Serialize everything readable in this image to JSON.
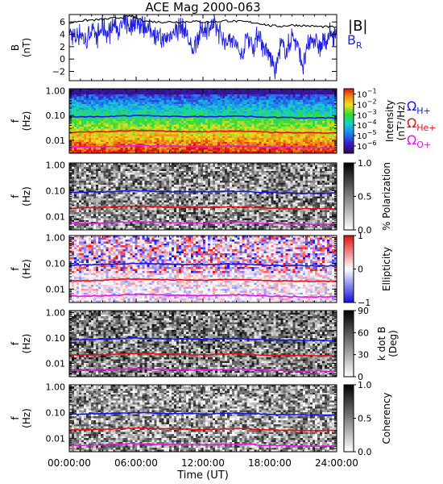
{
  "title": "ACE Mag 2000-063",
  "time_axis": {
    "ticks": [
      "00:00:00",
      "06:00:00",
      "12:00:00",
      "18:00:00",
      "24:00:00"
    ],
    "tick_hours": [
      0,
      6,
      12,
      18,
      24
    ],
    "range_hours": [
      0,
      24
    ],
    "xlabel": "Time (UT)"
  },
  "colors": {
    "black_trace": "#000000",
    "blue_trace": "#1f1fe0",
    "h_line": "#1414e6",
    "he_line": "#e60f0f",
    "o_line": "#e619e6"
  },
  "legend": {
    "b_total": "|B|",
    "b_r_main": "B",
    "b_r_sub": "R",
    "omega": "Ω",
    "h_sub": "H+",
    "he_sub": "He+",
    "o_sub": "O+"
  },
  "chart_data": [
    {
      "type": "line",
      "panel": "B",
      "ylabel_main": "B",
      "ylabel_unit": "(nT)",
      "ylim": [
        -3.5,
        7.2
      ],
      "y_ticks": [
        "6",
        "4",
        "2",
        "0",
        "−2"
      ],
      "y_tick_values": [
        6,
        4,
        2,
        0,
        -2
      ],
      "series": [
        {
          "name": "|B|",
          "x": [
            0,
            1,
            2,
            3,
            4,
            5,
            5.5,
            6,
            7,
            8,
            9,
            10,
            11,
            12,
            13,
            14,
            15,
            16,
            17,
            18,
            19,
            20,
            21,
            22,
            23,
            24
          ],
          "y": [
            5.8,
            6.2,
            6.3,
            6.4,
            6.6,
            6.8,
            7.0,
            6.6,
            6.1,
            6.0,
            6.0,
            6.0,
            6.1,
            6.0,
            6.0,
            6.2,
            6.1,
            6.0,
            5.8,
            5.4,
            5.3,
            5.5,
            5.4,
            5.3,
            5.2,
            5.2
          ]
        },
        {
          "name": "B_R",
          "x": [
            0,
            0.5,
            1,
            1.5,
            2,
            2.5,
            3,
            3.5,
            4,
            4.5,
            5,
            5.5,
            6,
            6.5,
            7,
            7.5,
            8,
            8.5,
            9,
            9.5,
            10,
            10.5,
            11,
            11.5,
            12,
            12.5,
            13,
            13.5,
            14,
            14.5,
            15,
            15.5,
            16,
            16.5,
            17,
            17.5,
            18,
            18.5,
            19,
            19.5,
            20,
            20.5,
            21,
            21.5,
            22,
            22.5,
            23,
            23.5,
            24
          ],
          "y": [
            4.6,
            3.2,
            4.4,
            2.6,
            4.8,
            3.5,
            5.2,
            4.0,
            5.6,
            4.7,
            5.8,
            5.2,
            6.3,
            5.6,
            5.0,
            4.5,
            3.6,
            2.8,
            3.8,
            4.6,
            5.3,
            4.2,
            1.0,
            3.5,
            4.9,
            5.0,
            5.4,
            4.3,
            2.5,
            3.8,
            2.0,
            0.3,
            4.0,
            2.0,
            4.3,
            1.5,
            0.5,
            -2.0,
            2.3,
            1.2,
            3.8,
            2.2,
            -1.2,
            2.6,
            3.4,
            1.8,
            2.9,
            4.0,
            3.8
          ]
        }
      ]
    },
    {
      "type": "heatmap",
      "panel": "intensity",
      "ylabel_main": "f",
      "ylabel_unit": "(Hz)",
      "y_scale": "log",
      "ylim": [
        0.003,
        1.2
      ],
      "y_ticks": [
        "1.00",
        "0.10",
        "0.01"
      ],
      "y_tick_values": [
        1,
        0.1,
        0.01
      ],
      "colorbar": {
        "label": "Intensity",
        "unit": "(nT²/Hz)",
        "scale": "log",
        "ticks": [
          {
            "base": "10",
            "exp": "−1",
            "value": 0.1
          },
          {
            "base": "10",
            "exp": "−2",
            "value": 0.01
          },
          {
            "base": "10",
            "exp": "−3",
            "value": 0.001
          },
          {
            "base": "10",
            "exp": "−4",
            "value": 0.0001
          },
          {
            "base": "10",
            "exp": "−5",
            "value": 1e-05
          },
          {
            "base": "10",
            "exp": "−6",
            "value": 1e-06
          }
        ]
      },
      "overlays": [
        {
          "name": "Ω H+",
          "x": [
            0,
            3,
            6,
            9,
            12,
            15,
            18,
            21,
            24
          ],
          "y": [
            0.085,
            0.09,
            0.1,
            0.092,
            0.09,
            0.095,
            0.085,
            0.08,
            0.08
          ]
        },
        {
          "name": "Ω He+",
          "x": [
            0,
            3,
            6,
            9,
            12,
            15,
            18,
            21,
            24
          ],
          "y": [
            0.021,
            0.022,
            0.025,
            0.023,
            0.022,
            0.024,
            0.021,
            0.02,
            0.02
          ]
        },
        {
          "name": "Ω O+",
          "x": [
            0,
            3,
            6,
            9,
            12,
            15,
            18,
            21,
            24
          ],
          "y": [
            0.0053,
            0.0055,
            0.0062,
            0.0058,
            0.0055,
            0.006,
            0.0053,
            0.005,
            0.005
          ]
        }
      ]
    },
    {
      "type": "heatmap",
      "panel": "polarization",
      "ylabel_main": "f",
      "ylabel_unit": "(Hz)",
      "y_scale": "log",
      "ylim": [
        0.003,
        1.2
      ],
      "y_ticks": [
        "1.00",
        "0.10",
        "0.01"
      ],
      "y_tick_values": [
        1,
        0.1,
        0.01
      ],
      "colorbar": {
        "label": "% Polarization",
        "ticks": [
          "1.0",
          "0.5",
          "0.0"
        ],
        "tick_values": [
          1,
          0.5,
          0
        ],
        "range": [
          0,
          1
        ]
      },
      "overlays": "same as intensity panel"
    },
    {
      "type": "heatmap",
      "panel": "ellipticity",
      "ylabel_main": "f",
      "ylabel_unit": "(Hz)",
      "y_scale": "log",
      "ylim": [
        0.003,
        1.2
      ],
      "y_ticks": [
        "1.00",
        "0.10",
        "0.01"
      ],
      "y_tick_values": [
        1,
        0.1,
        0.01
      ],
      "colorbar": {
        "label": "Ellipticity",
        "ticks": [
          "1",
          "0",
          "−1"
        ],
        "tick_values": [
          1,
          0,
          -1
        ],
        "range": [
          -1,
          1
        ]
      },
      "overlays": "same as intensity panel"
    },
    {
      "type": "heatmap",
      "panel": "k_dot_b",
      "ylabel_main": "f",
      "ylabel_unit": "(Hz)",
      "y_scale": "log",
      "ylim": [
        0.003,
        1.2
      ],
      "y_ticks": [
        "1.00",
        "0.10",
        "0.01"
      ],
      "y_tick_values": [
        1,
        0.1,
        0.01
      ],
      "colorbar": {
        "label": "k dot B",
        "unit": "(Deg)",
        "ticks": [
          "90",
          "60",
          "30",
          "0"
        ],
        "tick_values": [
          90,
          60,
          30,
          0
        ],
        "range": [
          0,
          90
        ]
      },
      "overlays": "same as intensity panel"
    },
    {
      "type": "heatmap",
      "panel": "coherency",
      "ylabel_main": "f",
      "ylabel_unit": "(Hz)",
      "y_scale": "log",
      "ylim": [
        0.003,
        1.2
      ],
      "y_ticks": [
        "1.00",
        "0.10",
        "0.01"
      ],
      "y_tick_values": [
        1,
        0.1,
        0.01
      ],
      "colorbar": {
        "label": "Coherency",
        "ticks": [
          "1.0",
          "0.5",
          "0.0"
        ],
        "tick_values": [
          1,
          0.5,
          0
        ],
        "range": [
          0,
          1
        ]
      },
      "overlays": "same as intensity panel"
    }
  ]
}
